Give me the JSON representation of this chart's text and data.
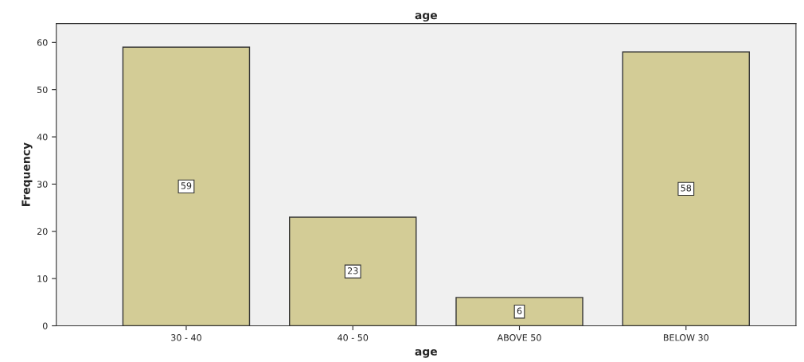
{
  "chart_data": {
    "type": "bar",
    "title": "age",
    "xlabel": "age",
    "ylabel": "Frequency",
    "categories": [
      "30 - 40",
      "40 - 50",
      "ABOVE 50",
      "BELOW 30"
    ],
    "values": [
      59,
      23,
      6,
      58
    ],
    "color": "#d3cc96",
    "ylim": [
      0,
      64
    ],
    "yticks": [
      0,
      10,
      20,
      30,
      40,
      50,
      60
    ],
    "grid": false,
    "data_labels": true
  }
}
